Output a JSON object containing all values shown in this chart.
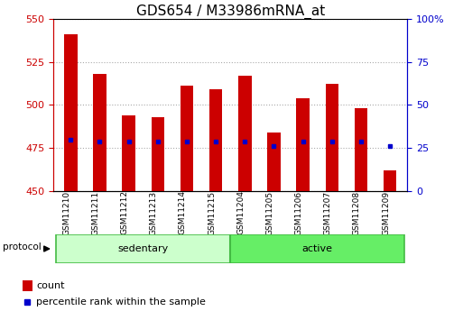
{
  "title": "GDS654 / M33986mRNA_at",
  "samples": [
    "GSM11210",
    "GSM11211",
    "GSM11212",
    "GSM11213",
    "GSM11214",
    "GSM11215",
    "GSM11204",
    "GSM11205",
    "GSM11206",
    "GSM11207",
    "GSM11208",
    "GSM11209"
  ],
  "bar_tops": [
    541,
    518,
    494,
    493,
    511,
    509,
    517,
    484,
    504,
    512,
    498,
    462
  ],
  "bar_bottom": 450,
  "percentile_values": [
    480,
    479,
    479,
    479,
    479,
    479,
    479,
    476,
    479,
    479,
    479,
    476
  ],
  "bar_color": "#cc0000",
  "percentile_color": "#0000cc",
  "ylim_left": [
    450,
    550
  ],
  "ylim_right": [
    0,
    100
  ],
  "yticks_left": [
    450,
    475,
    500,
    525,
    550
  ],
  "yticks_right": [
    0,
    25,
    50,
    75,
    100
  ],
  "groups": [
    {
      "label": "sedentary",
      "start": 0,
      "end": 6,
      "color": "#ccffcc"
    },
    {
      "label": "active",
      "start": 6,
      "end": 12,
      "color": "#66ee66"
    }
  ],
  "protocol_label": "protocol",
  "legend_count_label": "count",
  "legend_percentile_label": "percentile rank within the sample",
  "grid_color": "#aaaaaa",
  "left_tick_color": "#cc0000",
  "right_tick_color": "#0000cc",
  "title_fontsize": 11,
  "tick_fontsize": 8,
  "label_fontsize": 8,
  "bar_width": 0.45
}
